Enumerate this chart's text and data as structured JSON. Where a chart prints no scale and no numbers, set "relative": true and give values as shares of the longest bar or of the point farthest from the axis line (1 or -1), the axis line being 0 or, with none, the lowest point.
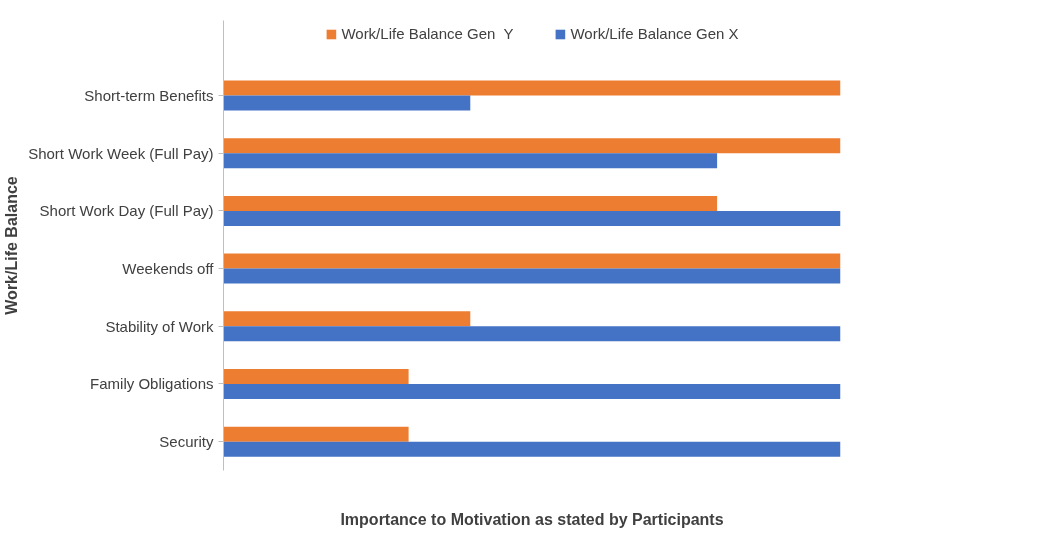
{
  "chart_data": {
    "type": "bar",
    "orientation": "horizontal",
    "relative": true,
    "xlabel": "Importance to Motivation as stated by Participants",
    "ylabel": "Work/Life Balance",
    "categories": [
      "Short-term Benefits",
      "Short Work Week (Full Pay)",
      "Short Work Day (Full Pay)",
      "Weekends off",
      "Stability of Work",
      "Family Obligations",
      "Security"
    ],
    "series": [
      {
        "name": "Work/Life Balance Gen  Y",
        "color": "#ed7d31",
        "values": [
          1,
          1,
          0.8,
          1,
          0.4,
          0.3,
          0.3
        ]
      },
      {
        "name": "Work/Life Balance Gen X",
        "color": "#4472c4",
        "values": [
          0.4,
          0.8,
          1,
          1,
          1,
          1,
          1
        ]
      }
    ],
    "legend": "top"
  }
}
